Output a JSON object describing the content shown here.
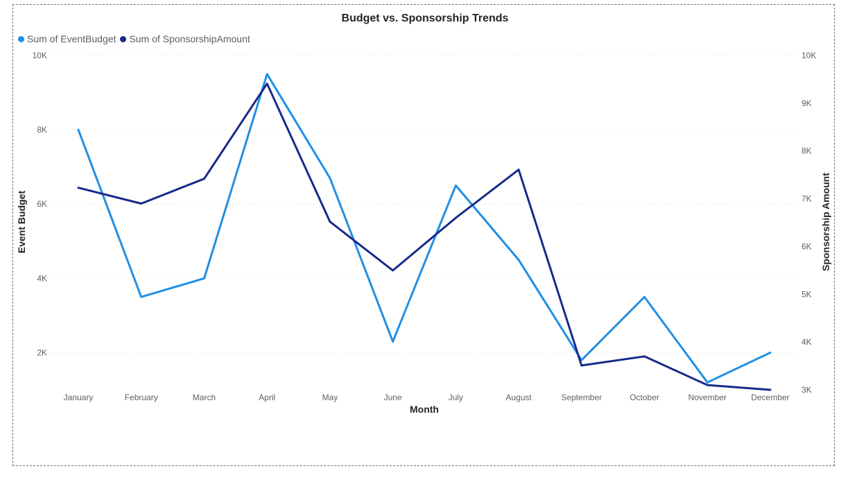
{
  "chart_data": {
    "type": "line",
    "title": "Budget vs. Sponsorship Trends",
    "xlabel": "Month",
    "ylabel": "Event Budget",
    "y2label": "Sponsorship Amount",
    "categories": [
      "January",
      "February",
      "March",
      "April",
      "May",
      "June",
      "July",
      "August",
      "September",
      "October",
      "November",
      "December"
    ],
    "ylim": [
      1000,
      10000
    ],
    "y2lim": [
      3000,
      10000
    ],
    "yticks": [
      "2K",
      "4K",
      "6K",
      "8K",
      "10K"
    ],
    "y2ticks": [
      "3K",
      "4K",
      "5K",
      "6K",
      "7K",
      "8K",
      "9K",
      "10K"
    ],
    "grid": true,
    "legend_position": "top-left",
    "series": [
      {
        "name": "Sum of EventBudget",
        "axis": "left",
        "color": "#1f8fe5",
        "values": [
          8000,
          3500,
          4000,
          9500,
          6700,
          2300,
          6500,
          4500,
          1800,
          3500,
          1200,
          2000
        ]
      },
      {
        "name": "Sum of SponsorshipAmount",
        "axis": "right",
        "color": "#172a8a",
        "values": [
          7230,
          6900,
          7420,
          9410,
          6520,
          5500,
          6600,
          7610,
          3510,
          3700,
          3100,
          3000
        ]
      }
    ]
  }
}
